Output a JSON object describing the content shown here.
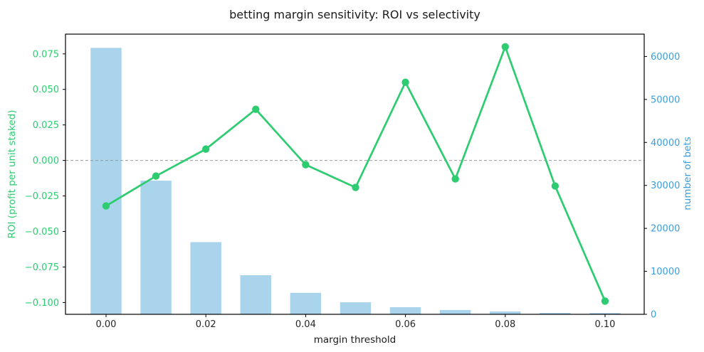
{
  "chart_data": {
    "type": "line+bar",
    "title": "betting margin sensitivity: ROI vs selectivity",
    "xlabel": "margin threshold",
    "ylabel_left": "ROI (profit per unit staked)",
    "ylabel_right": "number of bets",
    "x": [
      0.0,
      0.01,
      0.02,
      0.03,
      0.04,
      0.05,
      0.06,
      0.07,
      0.08,
      0.09,
      0.1
    ],
    "series": [
      {
        "name": "ROI",
        "type": "line",
        "axis": "left",
        "marker": "circle",
        "values": [
          -0.032,
          -0.011,
          0.008,
          0.036,
          -0.003,
          -0.019,
          0.055,
          -0.013,
          0.08,
          -0.018,
          -0.099
        ]
      },
      {
        "name": "number of bets",
        "type": "bar",
        "axis": "right",
        "values": [
          62000,
          31100,
          16800,
          9100,
          5000,
          2800,
          1650,
          1000,
          660,
          330,
          300
        ]
      }
    ],
    "x_ticks": [
      0.0,
      0.02,
      0.04,
      0.06,
      0.08,
      0.1
    ],
    "left_ticks": [
      0.075,
      0.05,
      0.025,
      0.0,
      -0.025,
      -0.05,
      -0.075,
      -0.1
    ],
    "right_ticks": [
      0,
      10000,
      20000,
      30000,
      40000,
      50000,
      60000
    ],
    "xlim": [
      -0.00813,
      0.10785
    ],
    "ylim_left": [
      -0.1083,
      0.0889
    ],
    "ylim_right": [
      0,
      65200
    ],
    "bar_width": 0.0062,
    "zero_line": true,
    "grid": false,
    "legend": false
  },
  "colors": {
    "line_green": "#2ecc71",
    "left_label_green": "#2ecc71",
    "bar_blue": "#a9d4ec",
    "right_label_blue": "#3a9fdb",
    "zero_line_gray": "#999999",
    "axis_black": "#000000",
    "tick_text_black": "#262626"
  }
}
